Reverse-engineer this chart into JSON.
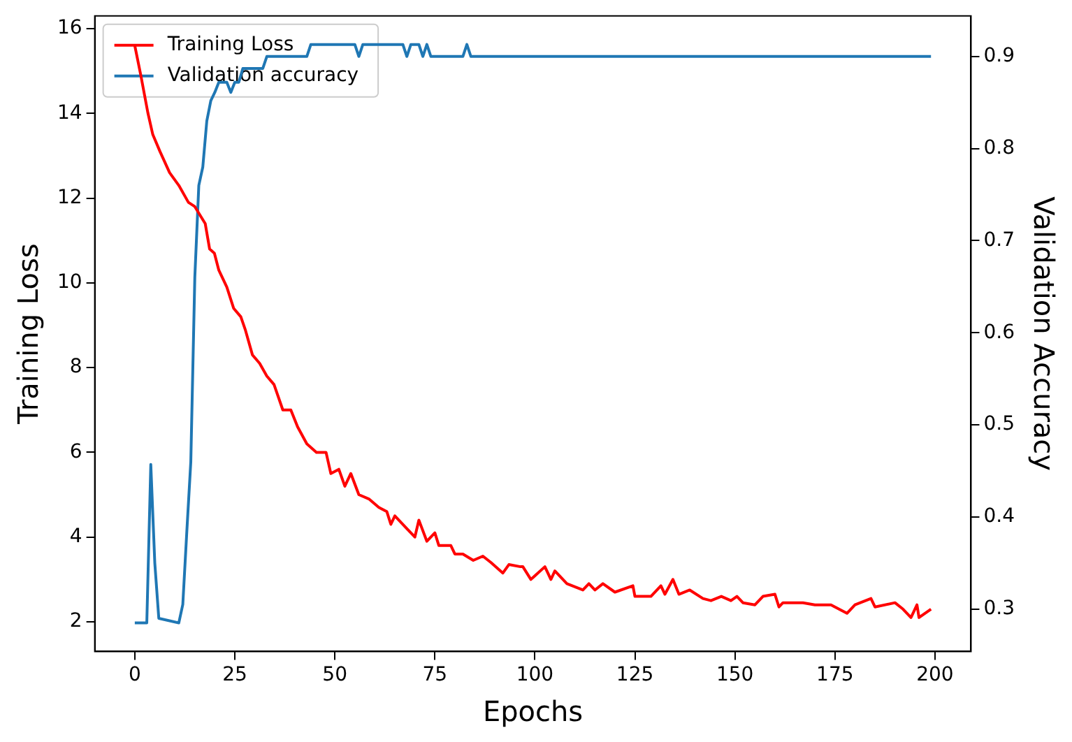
{
  "chart_data": {
    "type": "line",
    "xlabel": "Epochs",
    "ylabel": "Training Loss",
    "y2label": "Validation Accuracy",
    "xlim": [
      -10,
      209
    ],
    "xticks": [
      0,
      25,
      50,
      75,
      100,
      125,
      150,
      175,
      200
    ],
    "ylim": [
      1.3,
      16.3
    ],
    "yticks": [
      2,
      4,
      6,
      8,
      10,
      12,
      14,
      16
    ],
    "y2lim": [
      0.254,
      0.944
    ],
    "y2ticks": [
      0.3,
      0.4,
      0.5,
      0.6,
      0.7,
      0.8,
      0.9
    ],
    "grid": false,
    "legend": "top left",
    "marker": "none",
    "line_style": "solid",
    "series": [
      {
        "name": "Training Loss",
        "color": "#ff0000",
        "x": [
          0,
          1.5,
          3.3,
          4.5,
          6.3,
          8.7,
          11,
          13.4,
          15,
          17.6,
          18.7,
          19.9,
          21,
          23,
          24.7,
          26.5,
          27.6,
          29.4,
          31.2,
          33,
          34.8,
          37,
          39,
          40.7,
          43,
          45.4,
          47.8,
          49,
          51,
          52.5,
          54,
          56,
          58.5,
          61,
          63,
          64,
          65,
          68,
          70,
          71,
          73,
          75,
          76,
          79,
          80,
          82,
          84.6,
          87,
          89,
          92,
          93.5,
          96.4,
          97,
          99,
          102.5,
          104,
          105,
          108,
          112,
          113.5,
          115,
          117,
          120,
          124.5,
          125,
          129,
          131.5,
          132.5,
          134.5,
          136,
          138.7,
          142,
          144,
          146.6,
          149,
          150.5,
          152,
          155,
          157,
          160,
          161,
          162,
          167,
          170,
          174,
          178,
          180,
          184,
          185,
          190,
          192,
          194,
          195.5,
          196,
          199
        ],
        "values": [
          15.6,
          14.9,
          14.0,
          13.5,
          13.1,
          12.6,
          12.3,
          11.9,
          11.8,
          11.4,
          10.8,
          10.7,
          10.3,
          9.9,
          9.4,
          9.2,
          8.9,
          8.3,
          8.1,
          7.8,
          7.6,
          7.0,
          7.0,
          6.6,
          6.2,
          6.0,
          6.0,
          5.5,
          5.6,
          5.2,
          5.5,
          5.0,
          4.9,
          4.7,
          4.6,
          4.3,
          4.5,
          4.2,
          4.0,
          4.4,
          3.9,
          4.1,
          3.8,
          3.8,
          3.6,
          3.6,
          3.45,
          3.55,
          3.4,
          3.15,
          3.35,
          3.3,
          3.3,
          3.0,
          3.3,
          3.0,
          3.2,
          2.9,
          2.75,
          2.9,
          2.75,
          2.9,
          2.7,
          2.85,
          2.6,
          2.6,
          2.85,
          2.65,
          3.0,
          2.65,
          2.75,
          2.55,
          2.5,
          2.6,
          2.5,
          2.6,
          2.45,
          2.4,
          2.6,
          2.65,
          2.35,
          2.45,
          2.45,
          2.4,
          2.4,
          2.2,
          2.4,
          2.55,
          2.35,
          2.45,
          2.3,
          2.1,
          2.4,
          2.1,
          2.3
        ]
      },
      {
        "name": "Validation accuracy",
        "color": "#1f77b4",
        "axis": "y2",
        "x": [
          0,
          3,
          4,
          5,
          6,
          11,
          12,
          13,
          14,
          15,
          16,
          17,
          18,
          19,
          20,
          21,
          23,
          24,
          25,
          26,
          27,
          32,
          33,
          43,
          44,
          55,
          56,
          57,
          67,
          68,
          69,
          71,
          72,
          73,
          74,
          82,
          83,
          84,
          199
        ],
        "values": [
          0.285,
          0.285,
          0.457,
          0.35,
          0.29,
          0.285,
          0.305,
          0.384,
          0.46,
          0.66,
          0.76,
          0.78,
          0.83,
          0.852,
          0.861,
          0.872,
          0.872,
          0.861,
          0.872,
          0.872,
          0.887,
          0.887,
          0.9,
          0.9,
          0.913,
          0.913,
          0.9,
          0.913,
          0.913,
          0.9,
          0.913,
          0.913,
          0.9,
          0.913,
          0.9,
          0.9,
          0.913,
          0.9,
          0.9
        ]
      }
    ]
  }
}
